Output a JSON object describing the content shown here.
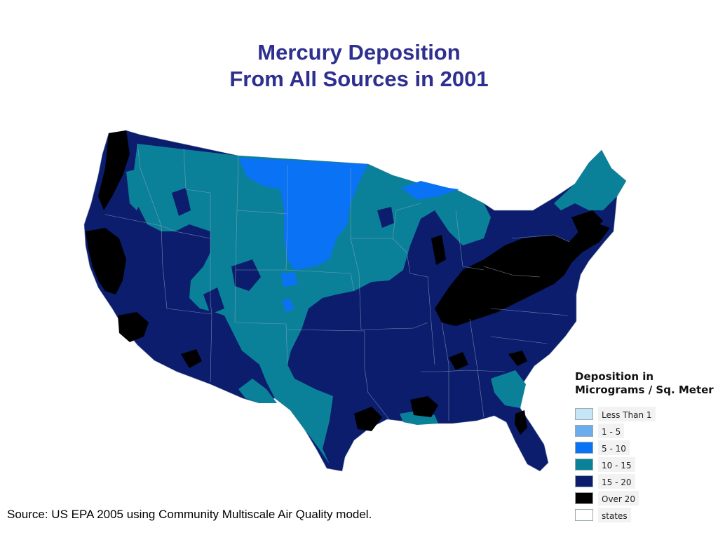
{
  "title": {
    "line1": "Mercury Deposition",
    "line2": "From All Sources in 2001"
  },
  "legend": {
    "title_line1": "Deposition in",
    "title_line2": "Micrograms / Sq. Meter",
    "items": [
      {
        "label": "Less Than 1",
        "color": "#c4e6f6"
      },
      {
        "label": "1 - 5",
        "color": "#6aacec"
      },
      {
        "label": "5 - 10",
        "color": "#0a72f4"
      },
      {
        "label": "10 - 15",
        "color": "#0b8199"
      },
      {
        "label": "15 - 20",
        "color": "#0b1d6c"
      },
      {
        "label": "Over 20",
        "color": "#000000"
      },
      {
        "label": "states",
        "color": "#ffffff"
      }
    ]
  },
  "source": "Source: US EPA 2005 using Community Multiscale Air Quality model."
}
